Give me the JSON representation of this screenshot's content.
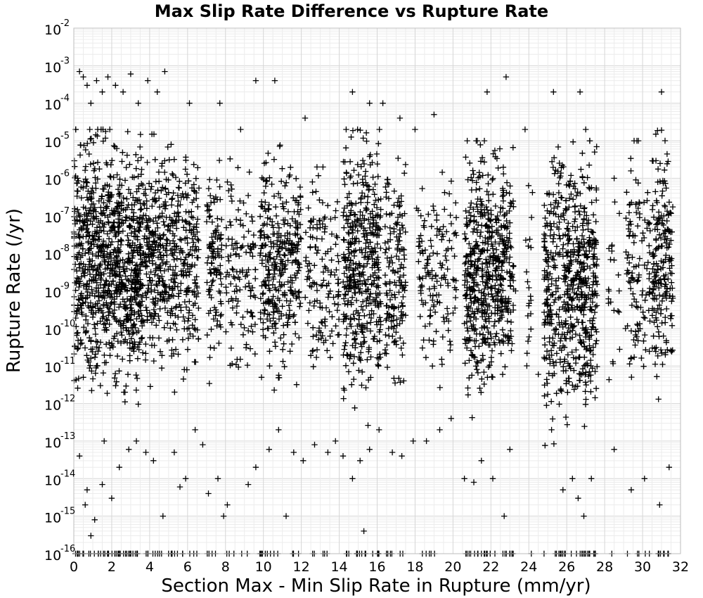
{
  "chart_data": {
    "type": "scatter",
    "title": "Max Slip Rate Difference vs Rupture Rate",
    "xlabel": "Section Max - Min Slip Rate in Rupture (mm/yr)",
    "ylabel": "Rupture Rate (/yr)",
    "xlim": [
      0,
      32
    ],
    "ylim": [
      1e-16,
      0.01
    ],
    "y_scale": "log",
    "marker": "+",
    "marker_color": "#000000",
    "grid": true,
    "x_ticks": [
      {
        "value": 0,
        "label": "0"
      },
      {
        "value": 2,
        "label": "2"
      },
      {
        "value": 4,
        "label": "4"
      },
      {
        "value": 6,
        "label": "6"
      },
      {
        "value": 8,
        "label": "8"
      },
      {
        "value": 10,
        "label": "10"
      },
      {
        "value": 12,
        "label": "12"
      },
      {
        "value": 14,
        "label": "14"
      },
      {
        "value": 16,
        "label": "16"
      },
      {
        "value": 18,
        "label": "18"
      },
      {
        "value": 20,
        "label": "20"
      },
      {
        "value": 22,
        "label": "22"
      },
      {
        "value": 24,
        "label": "24"
      },
      {
        "value": 26,
        "label": "26"
      },
      {
        "value": 28,
        "label": "28"
      },
      {
        "value": 30,
        "label": "30"
      },
      {
        "value": 32,
        "label": "32"
      }
    ],
    "y_ticks": [
      {
        "value": 1e-16,
        "base": "10",
        "exp": "-16"
      },
      {
        "value": 1e-15,
        "base": "10",
        "exp": "-15"
      },
      {
        "value": 1e-14,
        "base": "10",
        "exp": "-14"
      },
      {
        "value": 1e-13,
        "base": "10",
        "exp": "-13"
      },
      {
        "value": 1e-12,
        "base": "10",
        "exp": "-12"
      },
      {
        "value": 1e-11,
        "base": "10",
        "exp": "-11"
      },
      {
        "value": 1e-10,
        "base": "10",
        "exp": "-10"
      },
      {
        "value": 1e-09,
        "base": "10",
        "exp": "-9"
      },
      {
        "value": 1e-08,
        "base": "10",
        "exp": "-8"
      },
      {
        "value": 1e-07,
        "base": "10",
        "exp": "-7"
      },
      {
        "value": 1e-06,
        "base": "10",
        "exp": "-6"
      },
      {
        "value": 1e-05,
        "base": "10",
        "exp": "-5"
      },
      {
        "value": 0.0001,
        "base": "10",
        "exp": "-4"
      },
      {
        "value": 0.001,
        "base": "10",
        "exp": "-3"
      },
      {
        "value": 0.01,
        "base": "10",
        "exp": "-2"
      }
    ],
    "series": [
      {
        "points": [
          [
            0.1,
            2e-05
          ],
          [
            0.3,
            0.0007
          ],
          [
            0.5,
            0.0005
          ],
          [
            0.7,
            0.0003
          ],
          [
            0.9,
            0.0001
          ],
          [
            1.2,
            0.0004
          ],
          [
            1.5,
            0.0002
          ],
          [
            1.8,
            0.0005
          ],
          [
            2.2,
            0.0003
          ],
          [
            2.6,
            0.0002
          ],
          [
            3.0,
            0.0006
          ],
          [
            3.4,
            0.0001
          ],
          [
            3.9,
            0.0004
          ],
          [
            4.4,
            0.0002
          ],
          [
            4.8,
            0.0007
          ],
          [
            0.2,
            1e-06
          ],
          [
            0.4,
            3e-07
          ],
          [
            0.6,
            1e-08
          ],
          [
            0.8,
            5e-09
          ],
          [
            1.0,
            2e-10
          ],
          [
            1.2,
            1e-11
          ],
          [
            1.4,
            3e-12
          ],
          [
            1.6,
            1e-13
          ],
          [
            0.3,
            4e-14
          ],
          [
            0.6,
            2e-15
          ],
          [
            0.9,
            3e-16
          ],
          [
            1.1,
            8e-16
          ],
          [
            0.7,
            5e-15
          ],
          [
            1.5,
            7e-15
          ],
          [
            2.0,
            3e-15
          ],
          [
            2.4,
            2e-14
          ],
          [
            2.9,
            6e-14
          ],
          [
            3.3,
            1e-13
          ],
          [
            3.8,
            5e-14
          ],
          [
            4.2,
            3e-14
          ],
          [
            4.7,
            1e-15
          ],
          [
            5.3,
            5e-14
          ],
          [
            5.9,
            1e-14
          ],
          [
            5.6,
            6e-15
          ],
          [
            6.4,
            2e-13
          ],
          [
            6.8,
            8e-14
          ],
          [
            7.1,
            4e-15
          ],
          [
            7.6,
            1e-14
          ],
          [
            7.9,
            1e-15
          ],
          [
            8.1,
            2e-15
          ],
          [
            9.2,
            7e-15
          ],
          [
            9.6,
            2e-14
          ],
          [
            10.3,
            6e-14
          ],
          [
            10.8,
            2e-13
          ],
          [
            11.2,
            1e-15
          ],
          [
            11.6,
            5e-14
          ],
          [
            12.1,
            3e-14
          ],
          [
            12.7,
            8e-14
          ],
          [
            13.4,
            5e-14
          ],
          [
            13.8,
            1e-13
          ],
          [
            14.2,
            4e-14
          ],
          [
            14.7,
            1e-14
          ],
          [
            15.1,
            3e-14
          ],
          [
            15.3,
            4e-16
          ],
          [
            15.6,
            6e-14
          ],
          [
            16.1,
            2e-13
          ],
          [
            16.8,
            5e-14
          ],
          [
            17.3,
            4e-14
          ],
          [
            17.9,
            1e-13
          ],
          [
            18.6,
            1e-13
          ],
          [
            19.3,
            2e-13
          ],
          [
            19.9,
            4e-13
          ],
          [
            20.6,
            1e-14
          ],
          [
            21.1,
            8e-15
          ],
          [
            21.5,
            3e-14
          ],
          [
            22.1,
            1e-14
          ],
          [
            22.7,
            1e-15
          ],
          [
            23.0,
            6e-14
          ],
          [
            25.2,
            2e-13
          ],
          [
            25.8,
            5e-15
          ],
          [
            26.3,
            1e-14
          ],
          [
            26.6,
            3e-15
          ],
          [
            26.9,
            1e-15
          ],
          [
            27.3,
            1e-14
          ],
          [
            28.5,
            6e-14
          ],
          [
            29.4,
            5e-15
          ],
          [
            30.1,
            1e-14
          ],
          [
            30.9,
            2e-15
          ],
          [
            31.4,
            2e-14
          ],
          [
            31.0,
            0.0002
          ],
          [
            22.8,
            0.0005
          ],
          [
            21.8,
            0.0002
          ],
          [
            25.3,
            0.0002
          ],
          [
            26.7,
            0.0002
          ],
          [
            14.7,
            0.0002
          ],
          [
            9.6,
            0.0004
          ],
          [
            10.6,
            0.0004
          ],
          [
            7.7,
            0.0001
          ],
          [
            6.1,
            0.0001
          ],
          [
            16.3,
            0.0001
          ],
          [
            15.6,
            0.0001
          ],
          [
            17.2,
            4e-05
          ],
          [
            19.0,
            5e-05
          ],
          [
            23.8,
            2e-05
          ],
          [
            27.0,
            2e-05
          ],
          [
            29.7,
            1e-05
          ],
          [
            30.7,
            1.5e-05
          ],
          [
            18.0,
            2e-05
          ],
          [
            8.8,
            2e-05
          ],
          [
            12.2,
            4e-05
          ],
          [
            2.0,
            5e-08
          ],
          [
            3.5,
            2e-09
          ],
          [
            5.0,
            8e-10
          ],
          [
            6.2,
            4e-08
          ],
          [
            7.4,
            3e-11
          ],
          [
            8.6,
            1e-09
          ],
          [
            9.9,
            5e-12
          ],
          [
            11.0,
            2e-08
          ],
          [
            12.4,
            3e-10
          ],
          [
            13.1,
            7e-09
          ],
          [
            14.4,
            2e-11
          ],
          [
            15.8,
            6e-08
          ],
          [
            16.6,
            1e-10
          ],
          [
            17.4,
            4e-12
          ],
          [
            18.3,
            3e-08
          ],
          [
            19.6,
            2e-09
          ],
          [
            20.9,
            5e-11
          ],
          [
            22.3,
            8e-08
          ],
          [
            23.3,
            1e-09
          ],
          [
            24.5,
            6e-12
          ],
          [
            25.6,
            3e-08
          ],
          [
            26.2,
            2e-10
          ],
          [
            27.6,
            7e-09
          ],
          [
            29.1,
            1e-10
          ],
          [
            30.4,
            4e-08
          ],
          [
            31.2,
            2e-11
          ],
          [
            0.5,
            5e-12
          ],
          [
            1.3,
            7e-10
          ],
          [
            2.7,
            2e-12
          ],
          [
            4.1,
            6e-07
          ]
        ]
      }
    ],
    "density_bands": [
      {
        "x": [
          0.0,
          3.6
        ],
        "y": [
          1e-14,
          2e-05
        ],
        "density": 1.0
      },
      {
        "x": [
          3.6,
          4.6
        ],
        "y": [
          5e-14,
          1.5e-05
        ],
        "density": 0.75
      },
      {
        "x": [
          4.6,
          6.6
        ],
        "y": [
          1e-13,
          1e-05
        ],
        "density": 0.6
      },
      {
        "x": [
          7.0,
          7.8
        ],
        "y": [
          1e-13,
          3e-06
        ],
        "density": 0.55
      },
      {
        "x": [
          8.0,
          9.6
        ],
        "y": [
          3e-14,
          4e-06
        ],
        "density": 0.3
      },
      {
        "x": [
          9.8,
          12.0
        ],
        "y": [
          3e-14,
          1e-05
        ],
        "density": 0.6
      },
      {
        "x": [
          12.2,
          14.0
        ],
        "y": [
          5e-14,
          2e-06
        ],
        "density": 0.3
      },
      {
        "x": [
          14.2,
          16.2
        ],
        "y": [
          5e-15,
          2e-05
        ],
        "density": 0.85
      },
      {
        "x": [
          16.4,
          17.5
        ],
        "y": [
          2e-14,
          5e-06
        ],
        "density": 0.55
      },
      {
        "x": [
          18.0,
          20.2
        ],
        "y": [
          1e-13,
          2e-06
        ],
        "density": 0.25
      },
      {
        "x": [
          20.6,
          23.2
        ],
        "y": [
          1e-14,
          1e-05
        ],
        "density": 0.85
      },
      {
        "x": [
          23.8,
          24.2
        ],
        "y": [
          1e-13,
          2e-06
        ],
        "density": 0.2
      },
      {
        "x": [
          24.8,
          27.6
        ],
        "y": [
          1e-15,
          1e-05
        ],
        "density": 0.85
      },
      {
        "x": [
          28.2,
          28.8
        ],
        "y": [
          1e-14,
          1e-06
        ],
        "density": 0.15
      },
      {
        "x": [
          29.1,
          30.4
        ],
        "y": [
          1e-14,
          1e-05
        ],
        "density": 0.35
      },
      {
        "x": [
          30.5,
          31.6
        ],
        "y": [
          1e-14,
          2e-05
        ],
        "density": 0.7
      }
    ],
    "floor_points_at": 1e-16
  }
}
